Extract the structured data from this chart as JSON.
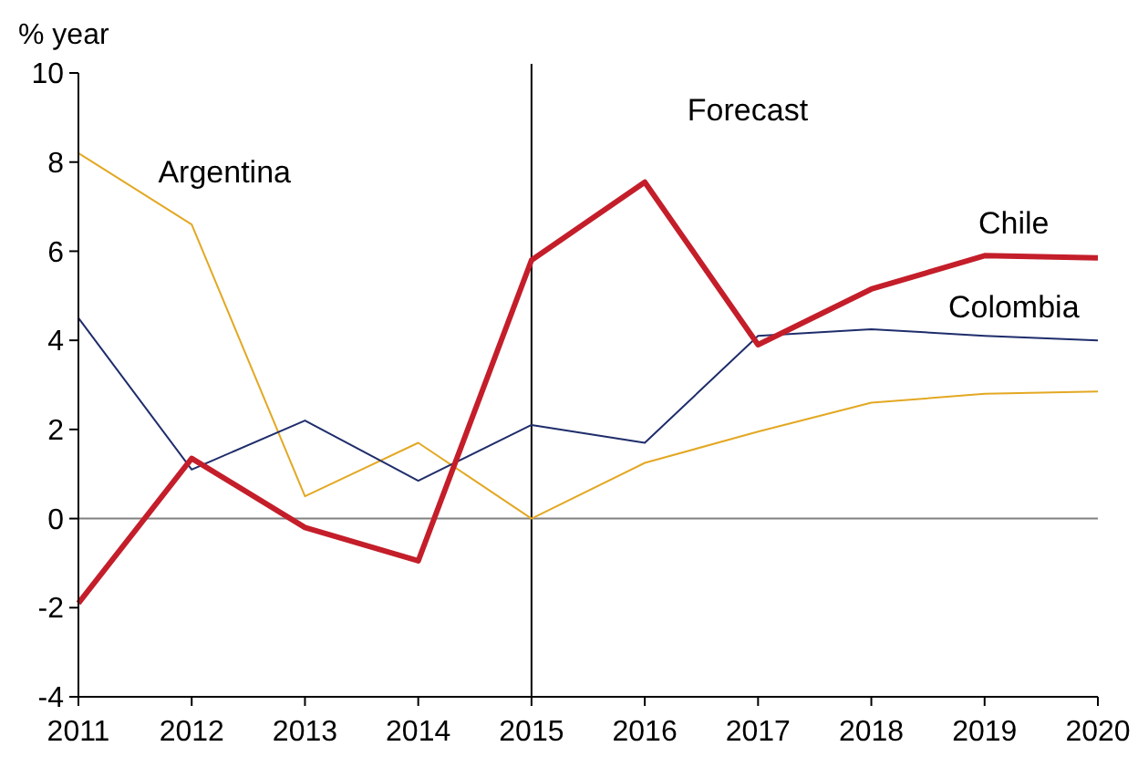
{
  "chart_data": {
    "type": "line",
    "ylabel": "% year",
    "x": [
      2011,
      2012,
      2013,
      2014,
      2015,
      2016,
      2017,
      2018,
      2019,
      2020
    ],
    "xlim": [
      2011,
      2020
    ],
    "xticks": [
      2011,
      2012,
      2013,
      2014,
      2015,
      2016,
      2017,
      2018,
      2019,
      2020
    ],
    "ylim": [
      -4,
      10
    ],
    "yticks": [
      -4,
      -2,
      0,
      2,
      4,
      6,
      8,
      10
    ],
    "grid": false,
    "marker": "none",
    "series": [
      {
        "name": "Argentina",
        "color": "#e3a823",
        "values": [
          8.2,
          6.6,
          0.5,
          1.7,
          0,
          1.25,
          1.95,
          2.6,
          2.8,
          2.85
        ]
      },
      {
        "name": "Colombia",
        "color": "#1f2d6b",
        "values": [
          4.5,
          1.1,
          2.2,
          0.85,
          2.1,
          1.7,
          4.1,
          4.25,
          4.1,
          4.0
        ]
      },
      {
        "name": "Chile",
        "color": "#c41e2a",
        "values": [
          -1.9,
          1.35,
          -0.2,
          -0.95,
          5.8,
          7.55,
          3.9,
          5.15,
          5.9,
          5.85
        ]
      }
    ],
    "ref_lines": [
      {
        "axis": "y",
        "value": 0,
        "color": "#808080"
      },
      {
        "axis": "x",
        "value": 2015,
        "color": "#000000"
      }
    ],
    "annotations": [
      "Forecast"
    ]
  }
}
